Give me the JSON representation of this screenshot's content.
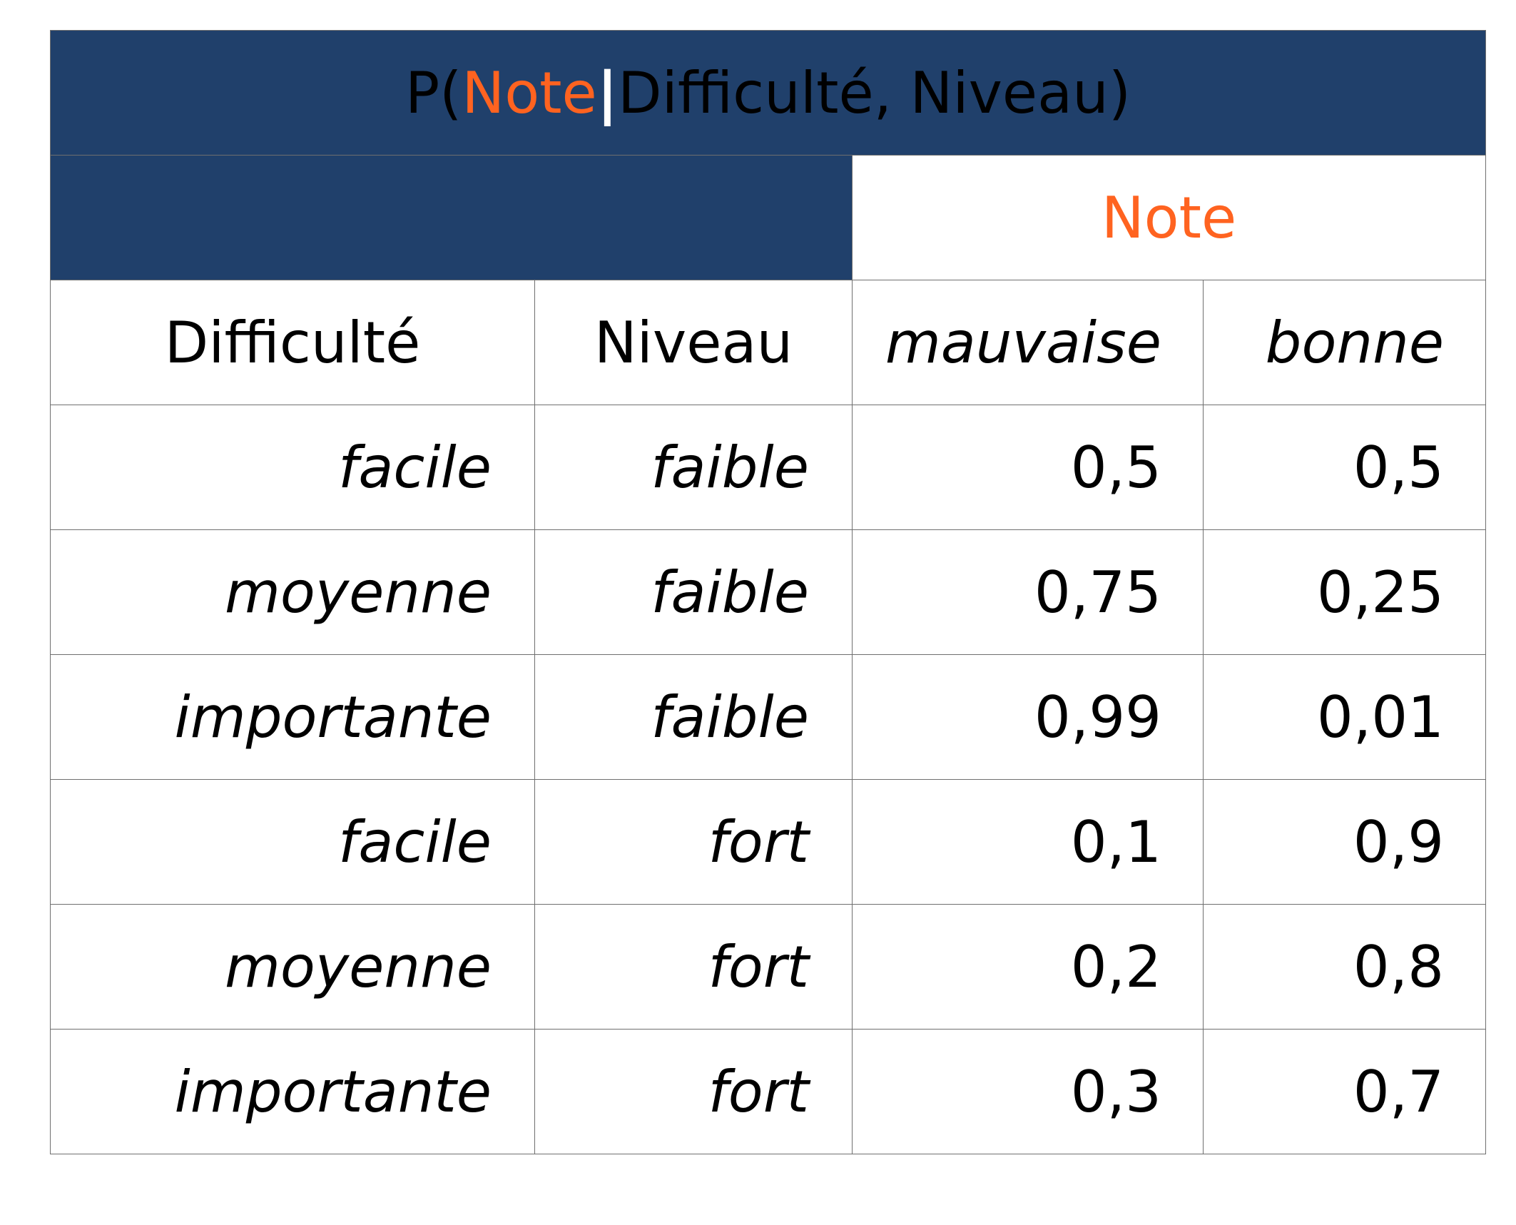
{
  "title": {
    "prefix": "P(",
    "variable": "Note",
    "separator": "|",
    "conditions": "Difficulté, Niveau)"
  },
  "header": {
    "group_label": "Note",
    "columns": [
      "Difficulté",
      "Niveau",
      "mauvaise",
      "bonne"
    ]
  },
  "rows": [
    {
      "difficulte": "facile",
      "niveau": "faible",
      "mauvaise": "0,5",
      "bonne": "0,5"
    },
    {
      "difficulte": "moyenne",
      "niveau": "faible",
      "mauvaise": "0,75",
      "bonne": "0,25"
    },
    {
      "difficulte": "importante",
      "niveau": "faible",
      "mauvaise": "0,99",
      "bonne": "0,01"
    },
    {
      "difficulte": "facile",
      "niveau": "fort",
      "mauvaise": "0,1",
      "bonne": "0,9"
    },
    {
      "difficulte": "moyenne",
      "niveau": "fort",
      "mauvaise": "0,2",
      "bonne": "0,8"
    },
    {
      "difficulte": "importante",
      "niveau": "fort",
      "mauvaise": "0,3",
      "bonne": "0,7"
    }
  ],
  "colors": {
    "header_bg": "#20406b",
    "title_text": "#c5d1e6",
    "accent": "#ff6320"
  }
}
